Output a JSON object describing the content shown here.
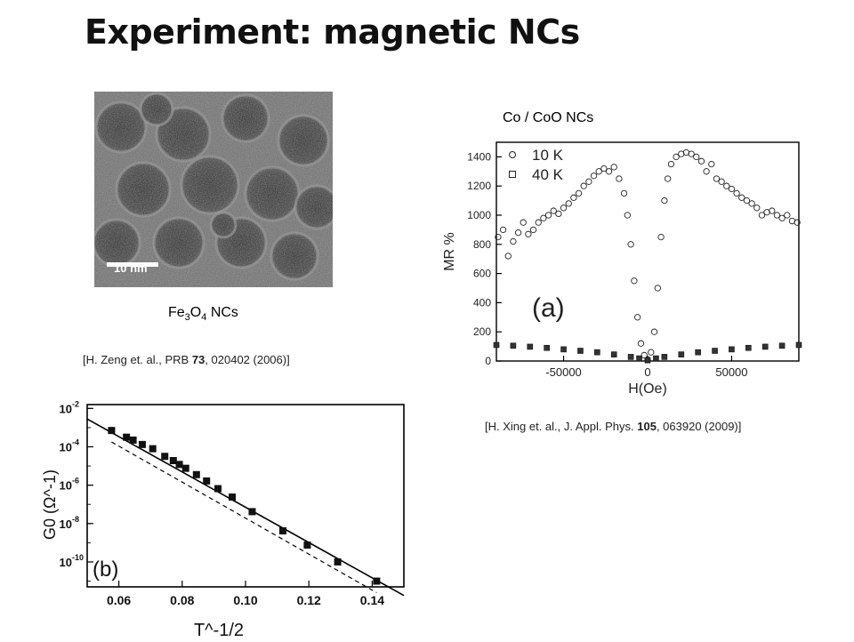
{
  "slide": {
    "title": "Experiment: magnetic NCs"
  },
  "tem_image": {
    "scale_bar_label": "10 nm",
    "caption_main": "Fe",
    "caption_sub1": "3",
    "caption_mid": "O",
    "caption_sub2": "4",
    "caption_end": " NCs",
    "reference": {
      "prefix": "[H. Zeng et. al., PRB ",
      "volume": "73",
      "suffix": ", 020402 (2006)]"
    }
  },
  "mr_caption": "Co / CoO NCs",
  "mr_reference": {
    "prefix": "[H. Xing et. al., J. Appl. Phys. ",
    "volume": "105",
    "suffix": ", 063920 (2009)]"
  },
  "chart_data": [
    {
      "type": "scatter",
      "panel_label": "(a)",
      "xlabel": "H(Oe)",
      "ylabel": "MR %",
      "xlim": [
        -90000,
        90000
      ],
      "ylim": [
        0,
        1500
      ],
      "x_ticks": [
        -50000,
        0,
        50000
      ],
      "y_ticks": [
        0,
        200,
        400,
        600,
        800,
        1000,
        1200,
        1400
      ],
      "legend_position": "top-left",
      "series": [
        {
          "name": "10 K",
          "marker": "circle",
          "x": [
            -89000,
            -86000,
            -83000,
            -80000,
            -77000,
            -74000,
            -71000,
            -68000,
            -65000,
            -62000,
            -59000,
            -56000,
            -53000,
            -50000,
            -47000,
            -44000,
            -41000,
            -38000,
            -35000,
            -32000,
            -29000,
            -26000,
            -23000,
            -20000,
            -17000,
            -14000,
            -12000,
            -10000,
            -8000,
            -6000,
            -4000,
            -2000,
            0,
            2000,
            4000,
            6000,
            8000,
            10000,
            12000,
            14000,
            17000,
            20000,
            23000,
            26000,
            29000,
            32000,
            35000,
            38000,
            41000,
            44000,
            47000,
            50000,
            53000,
            56000,
            59000,
            62000,
            65000,
            68000,
            71000,
            74000,
            77000,
            80000,
            83000,
            86000,
            89000
          ],
          "y": [
            850,
            900,
            720,
            820,
            880,
            950,
            870,
            900,
            950,
            980,
            1000,
            1030,
            1010,
            1050,
            1080,
            1120,
            1150,
            1200,
            1230,
            1270,
            1300,
            1320,
            1300,
            1330,
            1250,
            1150,
            1000,
            800,
            550,
            300,
            120,
            40,
            10,
            60,
            200,
            500,
            850,
            1100,
            1250,
            1350,
            1400,
            1420,
            1430,
            1420,
            1400,
            1370,
            1300,
            1350,
            1250,
            1230,
            1200,
            1180,
            1150,
            1120,
            1100,
            1080,
            1050,
            1000,
            1020,
            1030,
            1000,
            980,
            1000,
            960,
            950
          ]
        },
        {
          "name": "40 K",
          "marker": "square",
          "x": [
            -90000,
            -80000,
            -70000,
            -60000,
            -50000,
            -40000,
            -30000,
            -20000,
            -10000,
            -5000,
            0,
            5000,
            10000,
            20000,
            30000,
            40000,
            50000,
            60000,
            70000,
            80000,
            90000
          ],
          "y": [
            110,
            105,
            98,
            90,
            80,
            70,
            60,
            45,
            28,
            18,
            5,
            18,
            28,
            45,
            60,
            70,
            80,
            90,
            98,
            105,
            110
          ]
        }
      ]
    },
    {
      "type": "line",
      "panel_label": "(b)",
      "xlabel": "T^-1/2",
      "ylabel": "G0 (Ω^-1)",
      "y_scale": "log",
      "xlim": [
        0.05,
        0.15
      ],
      "ylim_log10": [
        -11.3,
        -1.8
      ],
      "x_ticks": [
        0.06,
        0.08,
        0.1,
        0.12,
        0.14
      ],
      "y_ticks_log10": [
        -2,
        -4,
        -6,
        -8,
        -10
      ],
      "series": [
        {
          "name": "data",
          "marker": "square",
          "x": [
            0.0577,
            0.0624,
            0.0645,
            0.0674,
            0.0707,
            0.0745,
            0.0772,
            0.0791,
            0.0811,
            0.0845,
            0.0877,
            0.0913,
            0.0958,
            0.1021,
            0.1118,
            0.1195,
            0.1291,
            0.1414
          ],
          "log10_y": [
            -3.15,
            -3.5,
            -3.65,
            -3.88,
            -4.1,
            -4.5,
            -4.72,
            -4.92,
            -5.12,
            -5.45,
            -5.78,
            -6.18,
            -6.62,
            -7.38,
            -8.38,
            -9.12,
            -10.0,
            -11.0
          ]
        },
        {
          "name": "solid fit",
          "line_style": "solid",
          "x": [
            0.05,
            0.15
          ],
          "log10_y": [
            -2.55,
            -11.75
          ]
        },
        {
          "name": "dashed fit",
          "line_style": "dashed",
          "x": [
            0.0577,
            0.1414
          ],
          "log10_y": [
            -3.75,
            -11.6
          ]
        }
      ]
    }
  ]
}
